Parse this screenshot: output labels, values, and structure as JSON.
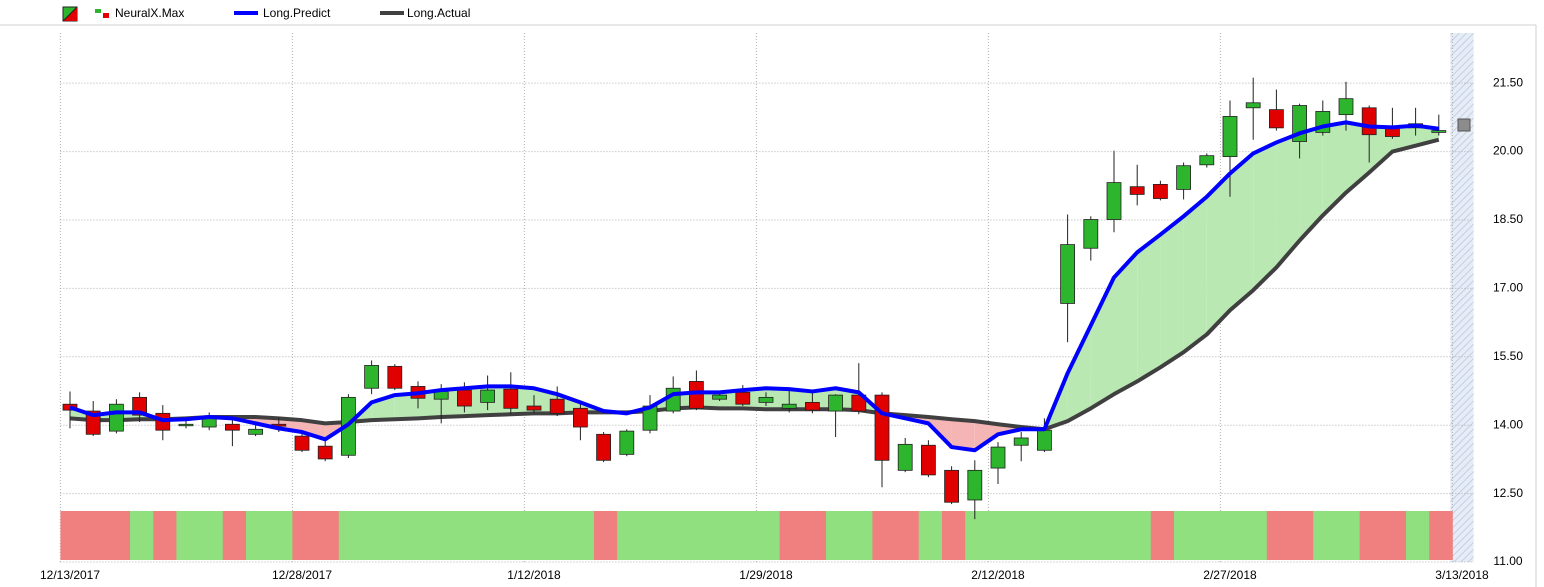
{
  "chart_data": {
    "type": "candlestick",
    "categories": [
      "12/13/2017",
      null,
      null,
      null,
      null,
      null,
      null,
      null,
      null,
      null,
      "12/28/2017",
      null,
      null,
      null,
      null,
      null,
      null,
      null,
      null,
      null,
      "1/12/2018",
      null,
      null,
      null,
      null,
      null,
      null,
      null,
      null,
      null,
      "1/29/2018",
      null,
      null,
      null,
      null,
      null,
      null,
      null,
      null,
      null,
      "2/12/2018",
      null,
      null,
      null,
      null,
      null,
      null,
      null,
      null,
      null,
      "2/27/2018",
      null,
      null,
      null,
      null,
      null,
      null,
      null,
      null,
      null,
      "3/13/2018"
    ],
    "candles": {
      "name": "NeuralX.Max",
      "up_color": "#2db52d",
      "down_color": "#e00000",
      "open": [
        14.46,
        14.31,
        13.87,
        14.61,
        14.26,
        14.0,
        13.96,
        14.02,
        13.8,
        14.02,
        13.76,
        13.54,
        13.34,
        14.81,
        15.29,
        14.85,
        14.57,
        14.77,
        14.5,
        14.79,
        14.42,
        14.57,
        14.37,
        13.8,
        13.36,
        13.89,
        14.31,
        14.96,
        14.57,
        14.72,
        14.5,
        14.37,
        14.5,
        14.31,
        14.66,
        14.66,
        13.01,
        13.56,
        13.01,
        12.36,
        13.06,
        13.56,
        13.45,
        16.67,
        17.88,
        18.51,
        19.23,
        19.28,
        19.17,
        19.71,
        19.89,
        20.96,
        20.92,
        20.22,
        20.42,
        20.81,
        20.96,
        20.52,
        20.61,
        20.42,
        null
      ],
      "high": [
        14.74,
        14.53,
        14.57,
        14.72,
        14.44,
        14.15,
        14.28,
        14.15,
        14.0,
        14.17,
        13.89,
        13.67,
        14.68,
        15.42,
        15.34,
        14.96,
        14.9,
        14.94,
        15.09,
        15.16,
        14.66,
        14.85,
        14.5,
        13.85,
        13.91,
        14.66,
        15.07,
        15.2,
        14.72,
        14.88,
        14.72,
        14.79,
        14.72,
        14.68,
        15.36,
        14.72,
        13.72,
        13.67,
        13.1,
        13.23,
        13.63,
        13.85,
        14.15,
        18.62,
        18.58,
        20.02,
        19.71,
        19.36,
        19.76,
        19.96,
        21.12,
        21.62,
        21.36,
        21.05,
        21.12,
        21.53,
        21.01,
        20.96,
        20.96,
        20.81,
        null
      ],
      "low": [
        13.93,
        13.76,
        13.82,
        14.07,
        13.67,
        13.93,
        13.89,
        13.54,
        13.76,
        13.85,
        13.41,
        13.21,
        13.28,
        14.68,
        14.77,
        14.37,
        14.04,
        14.28,
        14.33,
        14.24,
        14.26,
        14.2,
        13.67,
        13.19,
        13.32,
        13.82,
        14.26,
        14.33,
        14.53,
        14.42,
        14.42,
        14.28,
        14.26,
        13.74,
        14.24,
        12.64,
        12.97,
        12.86,
        12.27,
        11.94,
        12.71,
        13.21,
        13.41,
        15.82,
        17.61,
        18.23,
        18.82,
        18.93,
        18.95,
        19.65,
        19.01,
        20.26,
        20.46,
        19.85,
        20.35,
        20.46,
        19.76,
        20.28,
        20.35,
        20.35,
        null
      ],
      "close": [
        14.33,
        13.8,
        14.46,
        14.22,
        13.89,
        14.02,
        14.15,
        13.89,
        13.91,
        13.98,
        13.45,
        13.26,
        14.61,
        15.31,
        14.81,
        14.59,
        14.74,
        14.42,
        14.77,
        14.37,
        14.33,
        14.26,
        13.96,
        13.23,
        13.87,
        14.42,
        14.81,
        14.37,
        14.66,
        14.46,
        14.61,
        14.46,
        14.33,
        14.66,
        14.31,
        13.23,
        13.58,
        12.91,
        12.31,
        13.01,
        13.52,
        13.72,
        13.89,
        17.96,
        18.51,
        19.32,
        19.06,
        18.97,
        19.69,
        19.91,
        20.77,
        21.07,
        20.52,
        21.01,
        20.88,
        21.16,
        20.37,
        20.33,
        20.52,
        20.46,
        null
      ]
    },
    "series": [
      {
        "name": "Long.Predict",
        "color": "#0000ff",
        "values": [
          14.39,
          14.22,
          14.28,
          14.28,
          14.11,
          14.13,
          14.18,
          14.15,
          14.04,
          13.93,
          13.85,
          13.69,
          14.02,
          14.5,
          14.66,
          14.7,
          14.77,
          14.81,
          14.85,
          14.85,
          14.81,
          14.68,
          14.5,
          14.31,
          14.26,
          14.39,
          14.68,
          14.72,
          14.72,
          14.77,
          14.81,
          14.79,
          14.74,
          14.81,
          14.72,
          14.26,
          14.15,
          14.04,
          13.52,
          13.45,
          13.8,
          13.91,
          13.91,
          15.14,
          16.19,
          17.24,
          17.79,
          18.18,
          18.58,
          19.01,
          19.52,
          19.96,
          20.2,
          20.4,
          20.55,
          20.64,
          20.55,
          20.53,
          20.57,
          20.5,
          null
        ]
      },
      {
        "name": "Long.Actual",
        "color": "#404040",
        "values": [
          14.15,
          14.11,
          14.11,
          14.13,
          14.13,
          14.15,
          14.18,
          14.18,
          14.18,
          14.15,
          14.11,
          14.04,
          14.07,
          14.11,
          14.13,
          14.15,
          14.18,
          14.2,
          14.22,
          14.24,
          14.26,
          14.26,
          14.28,
          14.28,
          14.28,
          14.31,
          14.37,
          14.39,
          14.37,
          14.37,
          14.35,
          14.35,
          14.35,
          14.35,
          14.33,
          14.26,
          14.22,
          14.18,
          14.13,
          14.09,
          14.02,
          13.96,
          13.91,
          14.09,
          14.37,
          14.68,
          14.96,
          15.27,
          15.6,
          15.99,
          16.52,
          16.96,
          17.46,
          18.05,
          18.6,
          19.1,
          19.54,
          20.0,
          20.13,
          20.26,
          null
        ]
      }
    ],
    "fill_colors": {
      "above": "#b9e8b3",
      "below": "#f5b5b5"
    },
    "strip_colors": [
      "#f08080",
      "#f08080",
      "#f08080",
      "#90e080",
      "#f08080",
      "#90e080",
      "#90e080",
      "#f08080",
      "#90e080",
      "#90e080",
      "#f08080",
      "#f08080",
      "#90e080",
      "#90e080",
      "#90e080",
      "#90e080",
      "#90e080",
      "#90e080",
      "#90e080",
      "#90e080",
      "#90e080",
      "#90e080",
      "#90e080",
      "#f08080",
      "#90e080",
      "#90e080",
      "#90e080",
      "#90e080",
      "#90e080",
      "#90e080",
      "#90e080",
      "#f08080",
      "#f08080",
      "#90e080",
      "#90e080",
      "#f08080",
      "#f08080",
      "#90e080",
      "#f08080",
      "#90e080",
      "#90e080",
      "#90e080",
      "#90e080",
      "#90e080",
      "#90e080",
      "#90e080",
      "#90e080",
      "#f08080",
      "#90e080",
      "#90e080",
      "#90e080",
      "#90e080",
      "#f08080",
      "#f08080",
      "#90e080",
      "#90e080",
      "#f08080",
      "#f08080",
      "#90e080",
      "#f08080",
      null
    ],
    "ylim": [
      11,
      22.6
    ],
    "yticks": [
      {
        "value": 11,
        "label": "11.00"
      },
      {
        "value": 12.5,
        "label": "12.50"
      },
      {
        "value": 14,
        "label": "14.00"
      },
      {
        "value": 15.5,
        "label": "15.50"
      },
      {
        "value": 17,
        "label": "17.00"
      },
      {
        "value": 18.5,
        "label": "18.50"
      },
      {
        "value": 20,
        "label": "20.00"
      },
      {
        "value": 21.5,
        "label": "21.50"
      }
    ],
    "grid": true
  }
}
